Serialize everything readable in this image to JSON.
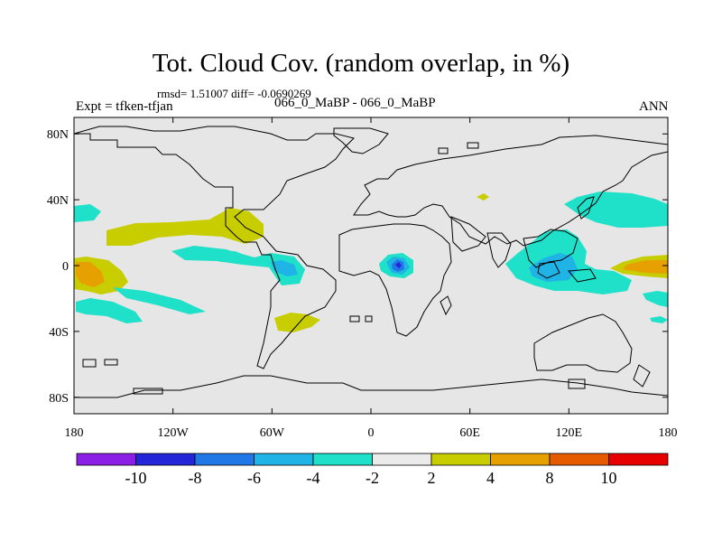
{
  "header": {
    "title": "Tot. Cloud Cov. (random overlap, in %)",
    "stats": "rmsd= 1.51007 diff= -0.0690269",
    "experiment": "Expt = tfken-tfjan",
    "comparison": "066_0_MaBP - 066_0_MaBP",
    "season": "ANN"
  },
  "map": {
    "x_tick_labels": [
      "180",
      "120W",
      "60W",
      "0",
      "60E",
      "120E",
      "180"
    ],
    "y_tick_labels": [
      "80N",
      "40N",
      "0",
      "40S",
      "80S"
    ],
    "background_color": "#e6e6e6",
    "coastline_color": "#000000"
  },
  "colorbar": {
    "colors": [
      "#8c1fe6",
      "#2424d9",
      "#1f78e6",
      "#1fb3e6",
      "#1fe0c8",
      "#ebebeb",
      "#c8cd00",
      "#e6a000",
      "#e65a00",
      "#e60000"
    ],
    "labels": [
      "-10",
      "-8",
      "-6",
      "-4",
      "-2",
      "2",
      "4",
      "8",
      "10"
    ]
  },
  "chart_data": {
    "type": "heatmap",
    "title": "Tot. Cloud Cov. (random overlap, in %)",
    "xlim": [
      -180,
      180
    ],
    "ylim": [
      -90,
      90
    ],
    "levels": [
      -10,
      -8,
      -6,
      -4,
      -2,
      2,
      4,
      8,
      10
    ],
    "features": [
      {
        "sign": "positive",
        "class": "2 to 4",
        "lon": 160,
        "lat": 0
      },
      {
        "sign": "positive",
        "class": "4 to 8",
        "lon": 170,
        "lat": -5
      },
      {
        "sign": "positive",
        "class": "2 to 4",
        "lon": -135,
        "lat": 25
      },
      {
        "sign": "positive",
        "class": "2 to 4",
        "lon": -80,
        "lat": 30
      },
      {
        "sign": "positive",
        "class": "2 to 4",
        "lon": -45,
        "lat": -33
      },
      {
        "sign": "negative",
        "class": "-4 to -2",
        "lon": -110,
        "lat": 7
      },
      {
        "sign": "negative",
        "class": "-6 to -4",
        "lon": -55,
        "lat": 0
      },
      {
        "sign": "negative",
        "class": "-10 to -8",
        "lon": 15,
        "lat": 0
      },
      {
        "sign": "negative",
        "class": "-6 to -4",
        "lon": 110,
        "lat": -5
      },
      {
        "sign": "negative",
        "class": "-4 to -2",
        "lon": 150,
        "lat": 40
      },
      {
        "sign": "negative",
        "class": "-4 to -2",
        "lon": -160,
        "lat": -25
      }
    ]
  }
}
